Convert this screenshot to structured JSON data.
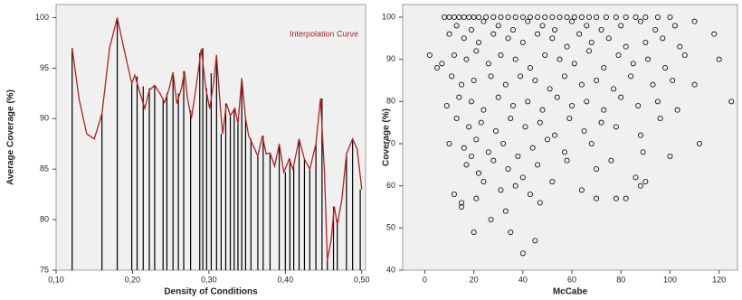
{
  "chart_data": [
    {
      "type": "spike",
      "xlabel": "Density of Conditions",
      "ylabel": "Average Coverage (%)",
      "xlim": [
        0.1,
        0.505
      ],
      "ylim": [
        75,
        101.3
      ],
      "xticks": [
        {
          "value": 0.1,
          "label": "0,10"
        },
        {
          "value": 0.2,
          "label": "0,20"
        },
        {
          "value": 0.3,
          "label": "0,30"
        },
        {
          "value": 0.4,
          "label": "0,40"
        },
        {
          "value": 0.5,
          "label": "0,50"
        }
      ],
      "yticks": [
        75,
        80,
        85,
        90,
        95,
        100
      ],
      "color": "#000000",
      "x": [
        0.121,
        0.16,
        0.18,
        0.199,
        0.206,
        0.214,
        0.222,
        0.229,
        0.24,
        0.245,
        0.253,
        0.26,
        0.267,
        0.276,
        0.288,
        0.292,
        0.297,
        0.303,
        0.31,
        0.316,
        0.322,
        0.328,
        0.333,
        0.338,
        0.343,
        0.348,
        0.355,
        0.364,
        0.371,
        0.38,
        0.392,
        0.4,
        0.406,
        0.411,
        0.418,
        0.425,
        0.432,
        0.44,
        0.448,
        0.455,
        0.463,
        0.468,
        0.48,
        0.488,
        0.498
      ],
      "values": [
        97,
        90.5,
        100,
        93.5,
        94.2,
        93.2,
        93,
        93.3,
        92,
        92.5,
        94.5,
        92.5,
        94.7,
        90.8,
        96.5,
        97,
        93,
        94.5,
        96.3,
        88.5,
        91.5,
        90.5,
        91,
        89.5,
        94,
        90,
        88,
        86.3,
        88.3,
        86.6,
        87.5,
        84.7,
        86,
        85.3,
        88,
        86,
        85,
        87.5,
        92,
        76,
        81.3,
        80,
        86.5,
        88,
        83
      ],
      "curve": {
        "name": "Interpolation Curve",
        "color": "#b22222",
        "x": [
          0.121,
          0.13,
          0.14,
          0.15,
          0.16,
          0.17,
          0.18,
          0.19,
          0.199,
          0.203,
          0.21,
          0.216,
          0.222,
          0.229,
          0.236,
          0.242,
          0.248,
          0.253,
          0.258,
          0.264,
          0.268,
          0.272,
          0.277,
          0.283,
          0.29,
          0.296,
          0.301,
          0.306,
          0.31,
          0.315,
          0.318,
          0.323,
          0.328,
          0.334,
          0.338,
          0.343,
          0.348,
          0.352,
          0.357,
          0.364,
          0.37,
          0.375,
          0.38,
          0.386,
          0.392,
          0.398,
          0.405,
          0.41,
          0.418,
          0.425,
          0.432,
          0.44,
          0.446,
          0.451,
          0.455,
          0.46,
          0.464,
          0.468,
          0.474,
          0.48,
          0.488,
          0.494,
          0.5
        ],
        "values": [
          97,
          92,
          88.5,
          88,
          90.5,
          97,
          100,
          96.5,
          93.5,
          94.3,
          92.5,
          91,
          92.8,
          93.3,
          92.5,
          91.6,
          93,
          94.6,
          91.5,
          93,
          94.7,
          92,
          90,
          93,
          96.9,
          93,
          91,
          93.5,
          96.3,
          91,
          88.5,
          91.5,
          90.3,
          91,
          89.5,
          94,
          90,
          88.3,
          87.5,
          86.3,
          88.3,
          86.5,
          86.6,
          85.3,
          87.5,
          84.7,
          86,
          85,
          88,
          86,
          85,
          87.5,
          92,
          85,
          76,
          78,
          81.3,
          79.5,
          82,
          86.5,
          88,
          87,
          83
        ]
      }
    },
    {
      "type": "scatter",
      "xlabel": "McCabe",
      "ylabel": "Coverage (%)",
      "xlim": [
        -9,
        127.5
      ],
      "ylim": [
        40,
        103
      ],
      "xticks": [
        0,
        20,
        40,
        60,
        80,
        100,
        120
      ],
      "yticks": [
        40,
        50,
        60,
        70,
        80,
        90,
        100
      ],
      "color": "#000000",
      "x": [
        8,
        10,
        12,
        14,
        16,
        18,
        20,
        22,
        25,
        28,
        31,
        34,
        37,
        40,
        43,
        46,
        49,
        52,
        55,
        58,
        61,
        64,
        67,
        70,
        74,
        78,
        82,
        86,
        90,
        95,
        100,
        13,
        19,
        24,
        30,
        36,
        42,
        48,
        53,
        60,
        66,
        72,
        80,
        88,
        94,
        102,
        110,
        10,
        16,
        22,
        28,
        34,
        40,
        46,
        52,
        58,
        63,
        68,
        75,
        82,
        90,
        97,
        104,
        118,
        7,
        12,
        17,
        21,
        26,
        31,
        37,
        43,
        49,
        55,
        61,
        67,
        73,
        79,
        85,
        91,
        98,
        106,
        120,
        2,
        5,
        11,
        15,
        20,
        27,
        33,
        39,
        45,
        51,
        57,
        64,
        70,
        77,
        84,
        93,
        101,
        110,
        9,
        14,
        19,
        24,
        30,
        36,
        42,
        48,
        54,
        60,
        66,
        73,
        80,
        87,
        95,
        103,
        125,
        13,
        18,
        23,
        29,
        35,
        41,
        47,
        53,
        59,
        65,
        72,
        78,
        88,
        96,
        10,
        16,
        21,
        26,
        32,
        38,
        44,
        50,
        57,
        68,
        76,
        89,
        100,
        112,
        17,
        22,
        28,
        34,
        40,
        46,
        58,
        70,
        86,
        19,
        24,
        31,
        37,
        43,
        52,
        64,
        78,
        88,
        90,
        12,
        15,
        15,
        21,
        33,
        47,
        70,
        82,
        20,
        35,
        40,
        45,
        27
      ],
      "values": [
        100,
        100,
        100,
        100,
        100,
        100,
        100,
        100,
        100,
        100,
        100,
        100,
        100,
        100,
        100,
        100,
        100,
        100,
        100,
        100,
        100,
        100,
        100,
        100,
        100,
        100,
        100,
        100,
        100,
        100,
        100,
        98,
        97,
        99,
        98,
        97,
        99,
        98,
        97,
        99,
        98,
        97,
        98,
        99,
        97,
        98,
        99,
        96,
        95,
        94,
        96,
        95,
        94,
        96,
        95,
        93,
        96,
        94,
        95,
        93,
        94,
        95,
        93,
        96,
        89,
        91,
        90,
        92,
        89,
        91,
        90,
        88,
        91,
        90,
        89,
        92,
        88,
        91,
        89,
        90,
        88,
        91,
        90,
        91,
        88,
        86,
        84,
        85,
        86,
        84,
        86,
        85,
        83,
        86,
        84,
        85,
        83,
        86,
        84,
        85,
        84,
        79,
        81,
        80,
        78,
        81,
        79,
        80,
        78,
        81,
        79,
        80,
        78,
        81,
        79,
        80,
        78,
        80,
        76,
        74,
        75,
        73,
        76,
        74,
        75,
        72,
        76,
        73,
        75,
        74,
        72,
        76,
        70,
        69,
        71,
        68,
        70,
        67,
        69,
        71,
        68,
        70,
        66,
        68,
        67,
        70,
        65,
        63,
        66,
        64,
        62,
        65,
        66,
        64,
        62,
        67,
        61,
        59,
        60,
        58,
        61,
        59,
        57,
        60,
        61,
        58,
        56,
        55,
        57,
        54,
        56,
        57,
        57,
        49,
        49,
        44,
        47,
        52
      ]
    }
  ]
}
